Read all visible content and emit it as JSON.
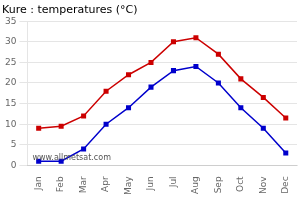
{
  "chart_data": {
    "type": "line",
    "title": "Kure : temperatures (°C)",
    "categories": [
      "Jan",
      "Feb",
      "Mar",
      "Apr",
      "May",
      "Jun",
      "Jul",
      "Aug",
      "Sep",
      "Oct",
      "Nov",
      "Dec"
    ],
    "series": [
      {
        "color": "#cc0000",
        "values": [
          9,
          9.5,
          12,
          18,
          22,
          25,
          30,
          31,
          27,
          21,
          16.5,
          11.5
        ]
      },
      {
        "color": "#0000cc",
        "values": [
          1,
          1,
          4,
          10,
          14,
          19,
          23,
          24,
          20,
          14,
          9,
          3
        ]
      }
    ],
    "ylim": [
      0,
      35
    ],
    "yticks": [
      0,
      5,
      10,
      15,
      20,
      25,
      30,
      35
    ],
    "grid": "y",
    "marker": "square",
    "line_style": "solid",
    "annotation": "www.allmetsat.com"
  }
}
